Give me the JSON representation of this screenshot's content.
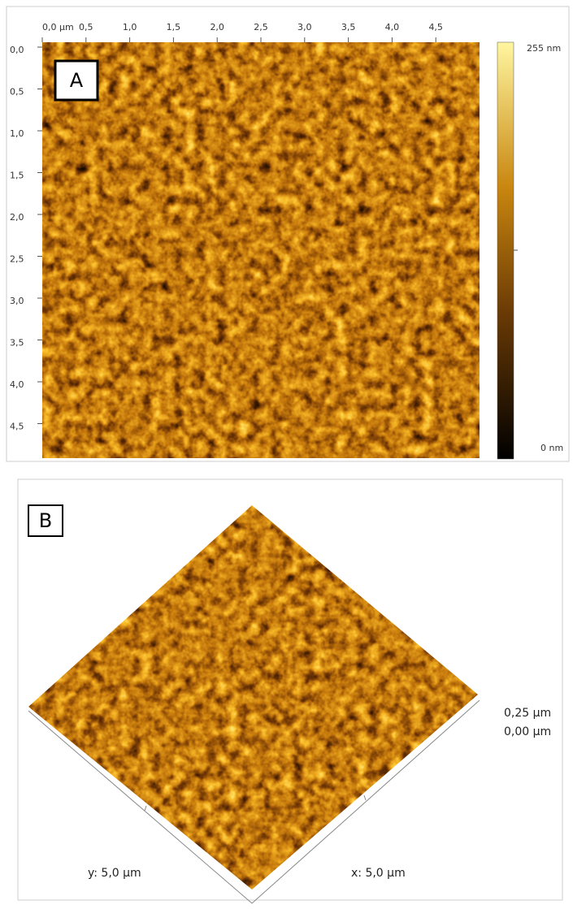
{
  "panel_a": {
    "label": "A",
    "x_ticks": [
      "0,0 µm",
      "0,5",
      "1,0",
      "1,5",
      "2,0",
      "2,5",
      "3,0",
      "3,5",
      "4,0",
      "4,5"
    ],
    "y_ticks": [
      "0,0",
      "0,5",
      "1,0",
      "1,5",
      "2,0",
      "2,5",
      "3,0",
      "3,5",
      "4,0",
      "4,5"
    ],
    "colorbar": {
      "max": "255 nm",
      "min": "0 nm"
    }
  },
  "panel_b": {
    "label": "B",
    "z_max": "0,25 µm",
    "z_min": "0,00 µm",
    "y_axis": "y: 5,0 µm",
    "x_axis": "x: 5,0 µm"
  }
}
